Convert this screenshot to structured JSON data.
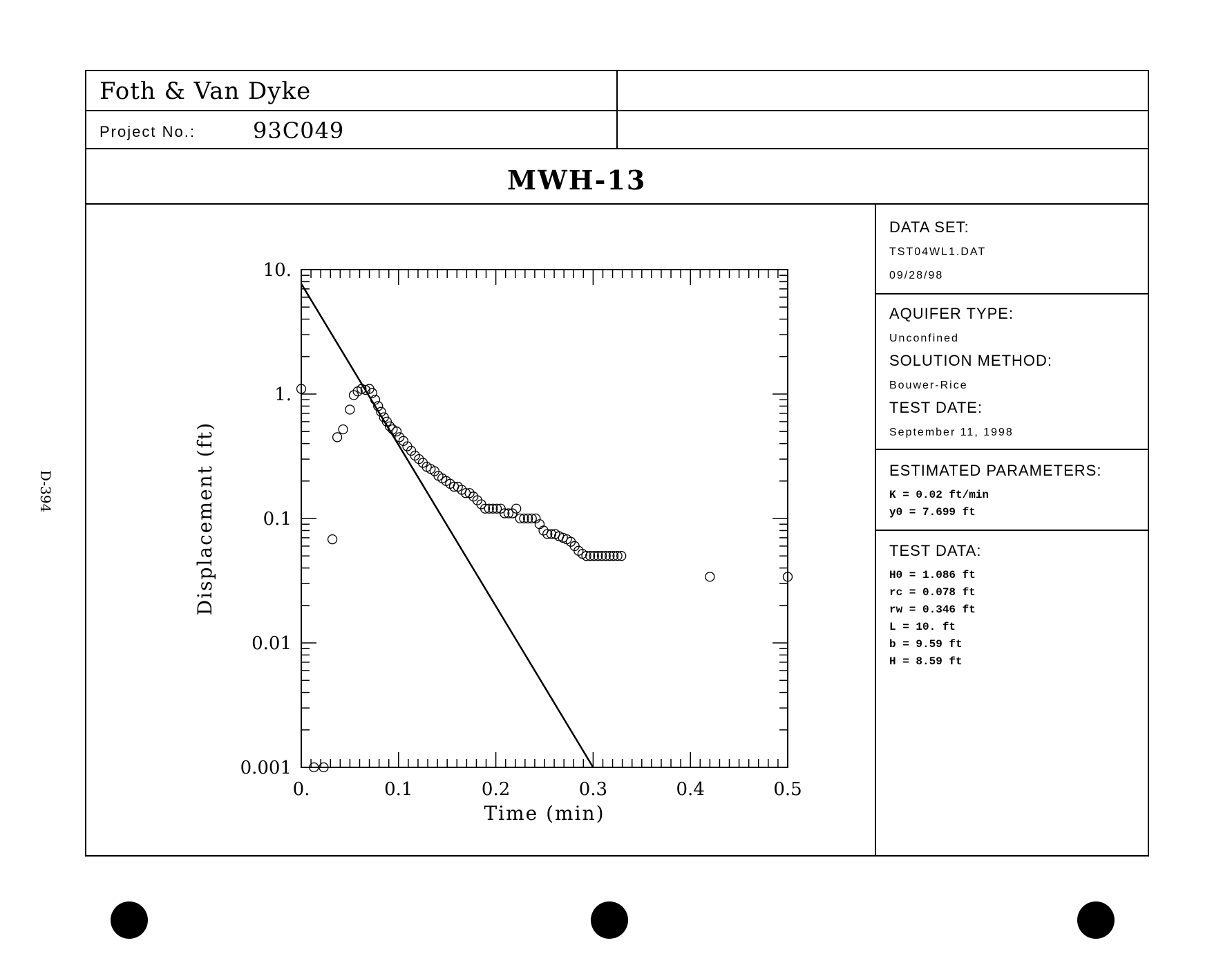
{
  "page": {
    "side_label": "D-394",
    "company": "Foth & Van Dyke",
    "project_label": "Project No.:",
    "project_no": "93C049",
    "title": "MWH-13"
  },
  "panel": {
    "data_set": {
      "heading": "DATA SET:",
      "file": "TST04WL1.DAT",
      "date": "09/28/98"
    },
    "aquifer": {
      "heading": "AQUIFER TYPE:",
      "value": "Unconfined"
    },
    "solution": {
      "heading": "SOLUTION METHOD:",
      "value": "Bouwer-Rice"
    },
    "test_date": {
      "heading": "TEST DATE:",
      "value": "September 11, 1998"
    },
    "estimated": {
      "heading": "ESTIMATED PARAMETERS:",
      "lines": [
        "K  = 0.02 ft/min",
        "y0 = 7.699 ft"
      ]
    },
    "test_data": {
      "heading": "TEST DATA:",
      "lines": [
        "H0 = 1.086 ft",
        "rc = 0.078 ft",
        "rw = 0.346 ft",
        "L = 10. ft",
        "b = 9.59 ft",
        "H = 8.59 ft"
      ]
    }
  },
  "chart_data": {
    "type": "scatter",
    "xlabel": "Time (min)",
    "ylabel": "Displacement (ft)",
    "xlim": [
      0,
      0.5
    ],
    "ylim": [
      0.001,
      10
    ],
    "yscale": "log",
    "x_ticks": [
      "0.",
      "0.1",
      "0.2",
      "0.3",
      "0.4",
      "0.5"
    ],
    "y_ticks": [
      "10.",
      "1.",
      "0.1",
      "0.01",
      "0.001"
    ],
    "series": [
      {
        "marker": "open-circle",
        "points": [
          [
            0.0,
            1.1
          ],
          [
            0.013,
            0.001
          ],
          [
            0.023,
            0.001
          ],
          [
            0.032,
            0.068
          ],
          [
            0.037,
            0.45
          ],
          [
            0.043,
            0.52
          ],
          [
            0.05,
            0.75
          ],
          [
            0.054,
            0.98
          ],
          [
            0.058,
            1.05
          ],
          [
            0.062,
            1.1
          ],
          [
            0.066,
            1.08
          ],
          [
            0.07,
            1.1
          ],
          [
            0.073,
            1.02
          ],
          [
            0.076,
            0.9
          ],
          [
            0.079,
            0.8
          ],
          [
            0.082,
            0.72
          ],
          [
            0.085,
            0.65
          ],
          [
            0.088,
            0.6
          ],
          [
            0.091,
            0.55
          ],
          [
            0.094,
            0.52
          ],
          [
            0.098,
            0.5
          ],
          [
            0.101,
            0.45
          ],
          [
            0.105,
            0.42
          ],
          [
            0.109,
            0.38
          ],
          [
            0.113,
            0.35
          ],
          [
            0.117,
            0.32
          ],
          [
            0.121,
            0.3
          ],
          [
            0.125,
            0.28
          ],
          [
            0.129,
            0.26
          ],
          [
            0.133,
            0.25
          ],
          [
            0.137,
            0.24
          ],
          [
            0.141,
            0.22
          ],
          [
            0.145,
            0.21
          ],
          [
            0.149,
            0.2
          ],
          [
            0.153,
            0.19
          ],
          [
            0.157,
            0.18
          ],
          [
            0.161,
            0.18
          ],
          [
            0.165,
            0.17
          ],
          [
            0.169,
            0.16
          ],
          [
            0.173,
            0.16
          ],
          [
            0.177,
            0.15
          ],
          [
            0.181,
            0.14
          ],
          [
            0.185,
            0.13
          ],
          [
            0.189,
            0.12
          ],
          [
            0.193,
            0.12
          ],
          [
            0.197,
            0.12
          ],
          [
            0.201,
            0.12
          ],
          [
            0.205,
            0.12
          ],
          [
            0.209,
            0.11
          ],
          [
            0.213,
            0.11
          ],
          [
            0.217,
            0.11
          ],
          [
            0.221,
            0.12
          ],
          [
            0.225,
            0.1
          ],
          [
            0.229,
            0.1
          ],
          [
            0.233,
            0.1
          ],
          [
            0.237,
            0.1
          ],
          [
            0.241,
            0.1
          ],
          [
            0.245,
            0.09
          ],
          [
            0.249,
            0.08
          ],
          [
            0.253,
            0.075
          ],
          [
            0.257,
            0.075
          ],
          [
            0.261,
            0.075
          ],
          [
            0.265,
            0.072
          ],
          [
            0.269,
            0.07
          ],
          [
            0.273,
            0.068
          ],
          [
            0.277,
            0.065
          ],
          [
            0.281,
            0.06
          ],
          [
            0.285,
            0.055
          ],
          [
            0.289,
            0.052
          ],
          [
            0.293,
            0.05
          ],
          [
            0.297,
            0.05
          ],
          [
            0.301,
            0.05
          ],
          [
            0.305,
            0.05
          ],
          [
            0.309,
            0.05
          ],
          [
            0.313,
            0.05
          ],
          [
            0.317,
            0.05
          ],
          [
            0.321,
            0.05
          ],
          [
            0.325,
            0.05
          ],
          [
            0.329,
            0.05
          ],
          [
            0.42,
            0.034
          ],
          [
            0.5,
            0.034
          ]
        ]
      },
      {
        "style": "line",
        "points": [
          [
            0.0,
            7.699
          ],
          [
            0.3,
            0.001
          ]
        ]
      }
    ]
  }
}
